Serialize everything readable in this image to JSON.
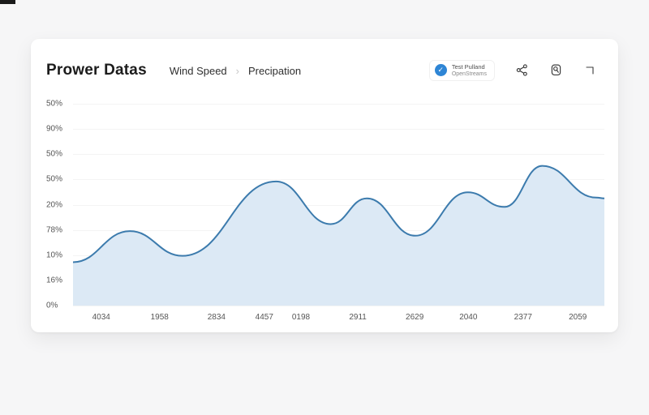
{
  "header": {
    "title": "Prower Datas",
    "breadcrumb": {
      "item1": "Wind Speed",
      "separator": "›",
      "item2": "Precipation"
    },
    "badge": {
      "line1": "Test Pulland",
      "line2": "OpenStreams",
      "icon_glyph": "✓",
      "icon_color": "#2e85d5"
    }
  },
  "chart_data": {
    "type": "area",
    "title": "",
    "xlabel": "",
    "ylabel": "",
    "categories": [
      "4034",
      "1958",
      "2834",
      "4457",
      "0198",
      "2911",
      "2629",
      "2040",
      "2377",
      "2059"
    ],
    "values": [
      26,
      20,
      37,
      50,
      42,
      44,
      29,
      47,
      56,
      45
    ],
    "y_tick_labels": [
      "50%",
      "90%",
      "50%",
      "50%",
      "20%",
      "78%",
      "10%",
      "16%",
      "0%"
    ],
    "ylim": [
      0,
      80
    ],
    "grid": "faint-horizontal",
    "legend_position": "none",
    "line_color": "#3c7bad",
    "fill_color": "#dce9f5",
    "x_positions": [
      0.053,
      0.163,
      0.27,
      0.36,
      0.429,
      0.536,
      0.643,
      0.744,
      0.847,
      0.95
    ],
    "curve_points": [
      [
        0.0,
        17.2
      ],
      [
        0.107,
        29.5
      ],
      [
        0.206,
        19.7
      ],
      [
        0.382,
        49.2
      ],
      [
        0.485,
        32.3
      ],
      [
        0.553,
        42.5
      ],
      [
        0.644,
        27.7
      ],
      [
        0.743,
        44.9
      ],
      [
        0.812,
        39.1
      ],
      [
        0.883,
        55.4
      ],
      [
        0.985,
        42.8
      ],
      [
        1.0,
        42.5
      ]
    ]
  }
}
